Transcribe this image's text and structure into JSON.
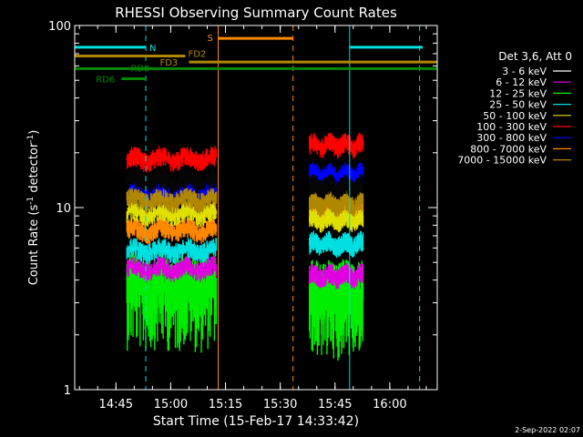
{
  "chart_data": {
    "type": "line",
    "title": "RHESSI Observing Summary Count Rates",
    "xlabel": "Start Time (15-Feb-17 14:33:42)",
    "ylabel": "Count Rate (s",
    "ylabel_sup": "-1",
    "ylabel_mid": " detector",
    "ylabel_sup2": "-1",
    "ylabel_end": ")",
    "footer": "2-Sep-2022 02:07",
    "yscale": "log",
    "ylim": [
      1,
      100
    ],
    "xlim": [
      "14:33:42",
      "16:13:00"
    ],
    "x_ticks": [
      "14:45",
      "15:00",
      "15:15",
      "15:30",
      "15:45",
      "16:00"
    ],
    "y_ticks": [
      "1",
      "10",
      "100"
    ],
    "legend_title": "Det 3,6, Att 0",
    "legend_position": "right",
    "series": [
      {
        "name": "3 - 6 keV",
        "color": "#000000",
        "level": [
          14,
          13
        ]
      },
      {
        "name": "6 - 12 keV",
        "color": "#e000e0",
        "level": [
          4.6,
          4.2
        ]
      },
      {
        "name": "12 - 25 keV",
        "color": "#00ee00",
        "level": [
          3.6,
          3.3
        ]
      },
      {
        "name": "25 - 50 keV",
        "color": "#00e0e0",
        "level": [
          5.8,
          6.3
        ]
      },
      {
        "name": "50 - 100 keV",
        "color": "#e0e000",
        "level": [
          9.3,
          8.6
        ]
      },
      {
        "name": "100 - 300 keV",
        "color": "#ff0000",
        "level": [
          18.5,
          22
        ]
      },
      {
        "name": "300 - 800 keV",
        "color": "#0000ff",
        "level": [
          12,
          15
        ]
      },
      {
        "name": "800 - 7000 keV",
        "color": "#ff8800",
        "level": [
          7.5,
          9.5
        ]
      },
      {
        "name": "7000 - 15000 keV",
        "color": "#b08800",
        "level": [
          11,
          10.5
        ]
      }
    ],
    "intervals": [
      {
        "start": "14:48:00",
        "end": "15:12:30"
      },
      {
        "start": "15:38:00",
        "end": "15:52:40"
      }
    ],
    "flags": [
      {
        "label": "N",
        "color": "#00e0e0",
        "y": 76,
        "segments": [
          [
            "14:33:42",
            "14:53:10"
          ],
          [
            "15:49:00",
            "16:09:00"
          ]
        ]
      },
      {
        "label": "S",
        "color": "#ff8800",
        "y": 85,
        "segments": [
          [
            "15:13:00",
            "15:33:30"
          ]
        ]
      },
      {
        "label": "FD2",
        "color": "#b08800",
        "y": 68,
        "segments": [
          [
            "14:33:42",
            "15:04:00"
          ]
        ]
      },
      {
        "label": "FD3",
        "color": "#b08800",
        "y": 63,
        "segments": [
          [
            "15:05:00",
            "16:13:00"
          ]
        ]
      },
      {
        "label": "RD0",
        "color": "#008800",
        "y": 58,
        "segments": [
          [
            "14:33:42",
            "16:13:00"
          ]
        ]
      },
      {
        "label": "RD6",
        "color": "#008800",
        "y": 51,
        "segments": [
          [
            "14:46:30",
            "14:53:10"
          ]
        ]
      }
    ],
    "vlines": [
      {
        "t": "14:33:42",
        "color": "#00e0e0",
        "dashed": false
      },
      {
        "t": "14:53:10",
        "color": "#00e0e0",
        "dashed": true
      },
      {
        "t": "15:13:00",
        "color": "#ff8800",
        "dashed": false
      },
      {
        "t": "15:33:30",
        "color": "#ff8800",
        "dashed": true
      },
      {
        "t": "15:49:00",
        "color": "#00e0e0",
        "dashed": false
      },
      {
        "t": "16:08:10",
        "color": "#00e0e0",
        "dashed": true
      }
    ]
  }
}
